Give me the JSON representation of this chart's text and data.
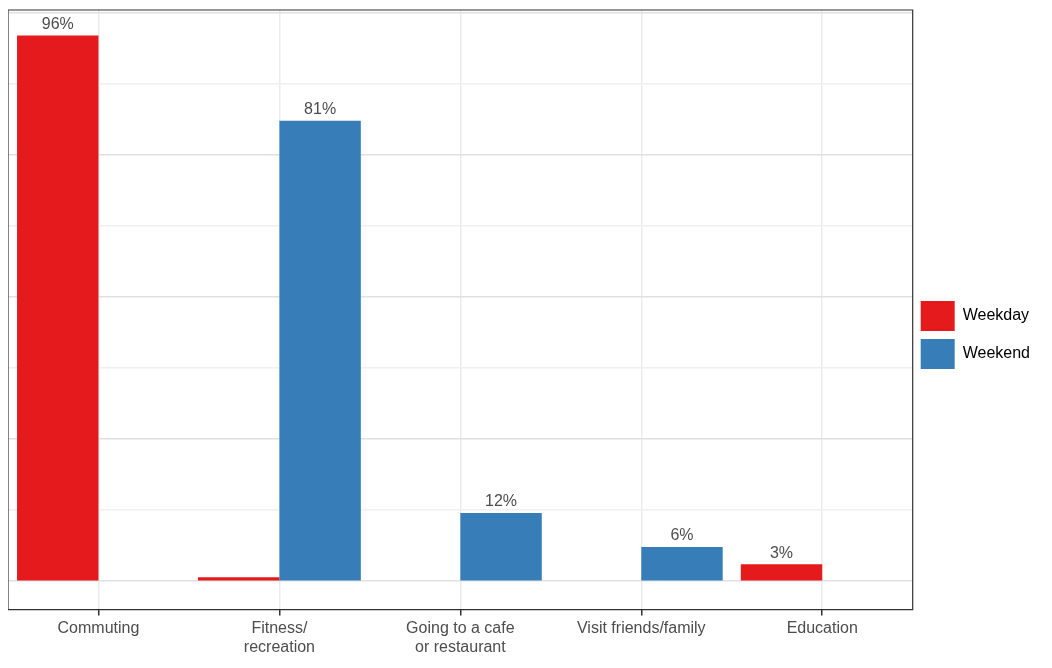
{
  "chart_data": {
    "type": "bar",
    "categories": [
      "Commuting",
      "Fitness/\nrecreation",
      "Going to a cafe\nor restaurant",
      "Visit friends/family",
      "Education"
    ],
    "series": [
      {
        "name": "Weekday",
        "color": "#e41a1c",
        "values": [
          96,
          0.7,
          0,
          0,
          3
        ],
        "value_labels": [
          "96%",
          null,
          null,
          null,
          "3%"
        ]
      },
      {
        "name": "Weekend",
        "color": "#377eb8",
        "values": [
          0,
          81,
          12,
          6,
          0
        ],
        "value_labels": [
          null,
          "81%",
          "12%",
          "6%",
          null
        ]
      }
    ],
    "ylim": [
      -5,
      100.5
    ],
    "yticks": [
      {
        "value": 0,
        "label": null
      },
      {
        "value": 12.5,
        "label": null
      },
      {
        "value": 25,
        "label": null
      },
      {
        "value": 37.5,
        "label": null
      },
      {
        "value": 50,
        "label": null
      },
      {
        "value": 62.5,
        "label": null
      },
      {
        "value": 75,
        "label": null
      },
      {
        "value": 87.5,
        "label": null
      },
      {
        "value": 100,
        "label": null
      }
    ],
    "tick_labels": "x",
    "grid": true,
    "legend": "right"
  }
}
